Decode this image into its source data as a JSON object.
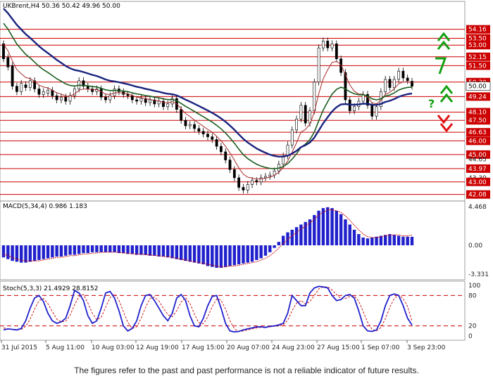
{
  "footer": "The figures refer to the past and past performance is not a reliable indicator of future results.",
  "chart_data": [
    {
      "type": "candlestick",
      "title": "UKBrent,H4  50.36 50.42 49.96 50.00",
      "ylim": [
        41.6,
        56.2
      ],
      "y_ticks": [
        "54.16",
        "53.50",
        "53.00",
        "52.15",
        "51.50",
        "50.30",
        "50.00",
        "49.24",
        "48.10",
        "47.50",
        "46.63",
        "46.00",
        "45.00",
        "44.65",
        "43.97",
        "43.30",
        "43.00",
        "42.08"
      ],
      "red_labels": [
        "54.16",
        "53.50",
        "53.00",
        "52.15",
        "51.50",
        "50.30",
        "49.24",
        "48.10",
        "47.50",
        "46.63",
        "46.00",
        "45.00",
        "43.97",
        "43.00",
        "42.08"
      ],
      "levels": [
        54.16,
        53.5,
        53.0,
        52.15,
        51.5,
        50.3,
        49.24,
        48.1,
        47.5,
        46.63,
        46.0,
        45.0,
        43.97,
        43.0,
        42.08
      ],
      "current_price": 50.0,
      "candles": [
        [
          53.1,
          52.0
        ],
        [
          52.1,
          51.4
        ],
        [
          51.5,
          50.0
        ],
        [
          50.0,
          49.6
        ],
        [
          49.6,
          50.2
        ],
        [
          50.1,
          49.9
        ],
        [
          49.9,
          50.4
        ],
        [
          50.4,
          49.8
        ],
        [
          49.8,
          49.4
        ],
        [
          49.4,
          49.6
        ],
        [
          49.5,
          49.7
        ],
        [
          49.7,
          49.3
        ],
        [
          49.3,
          49.0
        ],
        [
          49.0,
          49.2
        ],
        [
          49.2,
          48.9
        ],
        [
          48.9,
          49.3
        ],
        [
          49.3,
          49.8
        ],
        [
          49.8,
          50.4
        ],
        [
          50.4,
          50.0
        ],
        [
          50.0,
          49.8
        ],
        [
          49.8,
          49.6
        ],
        [
          49.6,
          49.8
        ],
        [
          49.8,
          49.2
        ],
        [
          49.2,
          49.0
        ],
        [
          49.0,
          49.3
        ],
        [
          49.3,
          49.8
        ],
        [
          49.8,
          49.6
        ],
        [
          49.6,
          49.4
        ],
        [
          49.4,
          49.3
        ],
        [
          49.3,
          49.0
        ],
        [
          49.0,
          48.9
        ],
        [
          48.9,
          49.1
        ],
        [
          49.1,
          48.8
        ],
        [
          48.8,
          49.0
        ],
        [
          49.0,
          48.7
        ],
        [
          48.7,
          48.9
        ],
        [
          48.9,
          48.5
        ],
        [
          48.5,
          48.7
        ],
        [
          48.7,
          49.1
        ],
        [
          49.1,
          48.3
        ],
        [
          48.3,
          47.5
        ],
        [
          47.5,
          47.1
        ],
        [
          47.1,
          47.2
        ],
        [
          47.2,
          46.9
        ],
        [
          46.9,
          46.7
        ],
        [
          46.7,
          46.5
        ],
        [
          46.5,
          46.3
        ],
        [
          46.3,
          46.1
        ],
        [
          46.1,
          45.6
        ],
        [
          45.6,
          45.2
        ],
        [
          45.2,
          44.6
        ],
        [
          44.6,
          43.9
        ],
        [
          43.9,
          43.3
        ],
        [
          43.3,
          42.6
        ],
        [
          42.6,
          42.4
        ],
        [
          42.4,
          42.8
        ],
        [
          42.8,
          43.1
        ],
        [
          43.1,
          43.0
        ],
        [
          43.0,
          43.3
        ],
        [
          43.3,
          43.4
        ],
        [
          43.4,
          43.5
        ],
        [
          43.5,
          43.8
        ],
        [
          43.8,
          44.3
        ],
        [
          44.3,
          44.9
        ],
        [
          44.9,
          45.7
        ],
        [
          45.7,
          46.8
        ],
        [
          46.8,
          47.6
        ],
        [
          47.6,
          48.6
        ],
        [
          48.6,
          47.3
        ],
        [
          47.3,
          48.2
        ],
        [
          48.2,
          50.3
        ],
        [
          50.3,
          52.8
        ],
        [
          52.8,
          53.3
        ],
        [
          53.3,
          52.8
        ],
        [
          52.8,
          53.1
        ],
        [
          53.1,
          52.0
        ],
        [
          52.0,
          51.0
        ],
        [
          51.0,
          49.0
        ],
        [
          49.0,
          48.2
        ],
        [
          48.2,
          48.5
        ],
        [
          48.5,
          48.9
        ],
        [
          48.9,
          49.4
        ],
        [
          49.4,
          48.6
        ],
        [
          48.6,
          47.8
        ],
        [
          47.8,
          48.5
        ],
        [
          48.5,
          49.6
        ],
        [
          49.6,
          50.5
        ],
        [
          50.5,
          49.9
        ],
        [
          49.9,
          50.5
        ],
        [
          50.5,
          51.1
        ],
        [
          51.1,
          50.6
        ],
        [
          50.6,
          50.4
        ],
        [
          50.36,
          50.0
        ]
      ]
    },
    {
      "type": "histogram",
      "title": "MACD(5,34,4) 0.986 1.183",
      "y_ticks": [
        "4.468",
        "0.00",
        "-3.331"
      ],
      "ylim": [
        -3.331,
        4.468
      ],
      "values": [
        -1.4,
        -1.6,
        -1.8,
        -1.9,
        -2.0,
        -2.0,
        -1.9,
        -1.8,
        -1.7,
        -1.6,
        -1.5,
        -1.4,
        -1.3,
        -1.3,
        -1.2,
        -1.1,
        -1.1,
        -1.0,
        -0.9,
        -0.9,
        -0.8,
        -0.8,
        -0.8,
        -0.8,
        -0.8,
        -0.8,
        -0.9,
        -0.9,
        -1.0,
        -1.0,
        -1.1,
        -1.1,
        -1.1,
        -1.2,
        -1.2,
        -1.3,
        -1.3,
        -1.4,
        -1.5,
        -1.6,
        -1.7,
        -1.8,
        -1.9,
        -2.0,
        -2.1,
        -2.2,
        -2.4,
        -2.5,
        -2.6,
        -2.6,
        -2.5,
        -2.4,
        -2.3,
        -2.2,
        -2.1,
        -2.0,
        -1.9,
        -1.7,
        -1.5,
        -1.2,
        -0.8,
        -0.3,
        0.4,
        1.1,
        1.5,
        1.8,
        2.1,
        2.4,
        2.7,
        3.0,
        3.5,
        4.0,
        4.3,
        4.4,
        4.3,
        4.0,
        3.6,
        3.0,
        2.4,
        1.8,
        1.3,
        0.9,
        0.8,
        0.9,
        1.0,
        1.1,
        1.2,
        1.3,
        1.2,
        1.1,
        1.0,
        1.0,
        0.986
      ],
      "signal": [
        -1.0,
        -1.2,
        -1.4,
        -1.6,
        -1.7,
        -1.8,
        -1.8,
        -1.8,
        -1.8,
        -1.7,
        -1.6,
        -1.5,
        -1.4,
        -1.4,
        -1.3,
        -1.2,
        -1.2,
        -1.1,
        -1.0,
        -1.0,
        -0.9,
        -0.9,
        -0.8,
        -0.8,
        -0.8,
        -0.8,
        -0.8,
        -0.9,
        -0.9,
        -1.0,
        -1.0,
        -1.0,
        -1.1,
        -1.1,
        -1.2,
        -1.2,
        -1.3,
        -1.3,
        -1.4,
        -1.5,
        -1.6,
        -1.7,
        -1.8,
        -1.9,
        -2.0,
        -2.1,
        -2.2,
        -2.3,
        -2.4,
        -2.5,
        -2.5,
        -2.4,
        -2.4,
        -2.3,
        -2.2,
        -2.1,
        -2.0,
        -1.9,
        -1.7,
        -1.5,
        -1.2,
        -0.8,
        -0.3,
        0.2,
        0.7,
        1.1,
        1.5,
        1.9,
        2.2,
        2.6,
        3.0,
        3.5,
        3.8,
        4.1,
        4.1,
        4.0,
        3.8,
        3.4,
        2.9,
        2.3,
        1.8,
        1.3,
        1.0,
        0.9,
        0.9,
        1.0,
        1.1,
        1.2,
        1.2,
        1.2,
        1.1,
        1.1,
        1.183
      ]
    },
    {
      "type": "line",
      "title": "Stoch(5,3,3) 21.4929 28.8152",
      "y_ticks": [
        "100",
        "80",
        "20",
        "0"
      ],
      "ylim": [
        0,
        100
      ],
      "levels": [
        80,
        20
      ],
      "main": [
        12,
        14,
        13,
        12,
        15,
        30,
        55,
        75,
        80,
        68,
        45,
        30,
        25,
        28,
        35,
        60,
        90,
        85,
        70,
        40,
        25,
        30,
        55,
        85,
        88,
        75,
        50,
        20,
        10,
        15,
        30,
        60,
        80,
        82,
        70,
        55,
        40,
        30,
        45,
        75,
        82,
        70,
        40,
        20,
        18,
        35,
        60,
        78,
        80,
        55,
        25,
        10,
        8,
        9,
        12,
        14,
        16,
        18,
        18,
        17,
        19,
        20,
        22,
        25,
        45,
        80,
        70,
        60,
        60,
        85,
        95,
        98,
        97,
        95,
        80,
        70,
        72,
        80,
        82,
        75,
        50,
        20,
        10,
        9,
        12,
        30,
        60,
        80,
        83,
        80,
        60,
        35,
        21.4929
      ],
      "signal": [
        16,
        14,
        13,
        13,
        13,
        19,
        33,
        53,
        70,
        74,
        64,
        48,
        33,
        28,
        29,
        41,
        62,
        78,
        82,
        65,
        45,
        32,
        37,
        57,
        76,
        83,
        71,
        48,
        27,
        15,
        18,
        35,
        57,
        74,
        77,
        69,
        55,
        42,
        38,
        50,
        67,
        76,
        64,
        43,
        26,
        24,
        38,
        58,
        73,
        71,
        53,
        30,
        14,
        9,
        10,
        12,
        14,
        16,
        17,
        18,
        18,
        19,
        20,
        22,
        31,
        50,
        65,
        70,
        63,
        68,
        80,
        93,
        97,
        97,
        91,
        82,
        74,
        74,
        78,
        79,
        69,
        48,
        27,
        13,
        10,
        17,
        34,
        57,
        74,
        81,
        74,
        58,
        28.8152
      ]
    }
  ],
  "x_ticks": [
    "31 Jul 2015",
    "5 Aug 11:00",
    "10 Aug 03:00",
    "12 Aug 19:00",
    "17 Aug 15:00",
    "20 Aug 07:00",
    "24 Aug 23:00",
    "27 Aug 15:00",
    "1 Sep 07:00",
    "3 Sep 23:00"
  ],
  "colors": {
    "level_line": "#cc0000",
    "ma_blue": "#1a237e",
    "ma_green": "#1b5e20",
    "ma_red": "#a52a2a",
    "macd_bar": "#2020cc",
    "stoch_main": "#2020cc",
    "arrow_green": "#12a012",
    "arrow_red": "#e01010"
  },
  "annotations": {
    "question_mark": "?",
    "arrows": [
      "green-up",
      "green-up",
      "red-down"
    ]
  }
}
